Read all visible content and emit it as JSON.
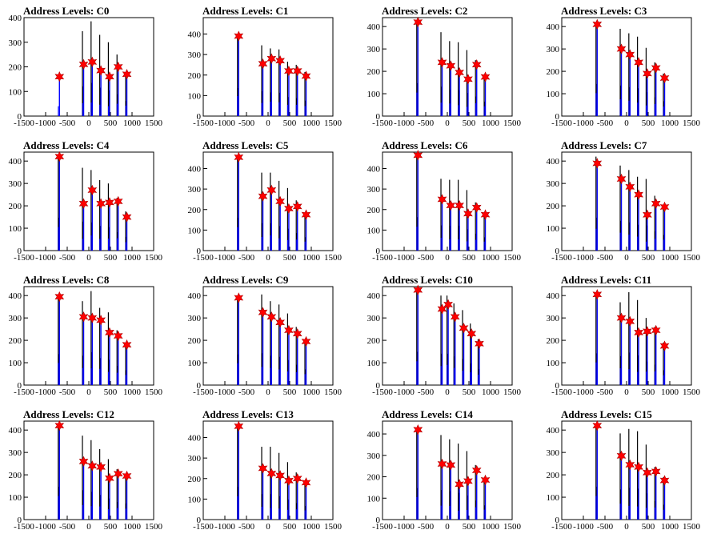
{
  "chart_data": [
    {
      "type": "bar",
      "title": "Address Levels: C0",
      "xlim": [
        -1500,
        1500
      ],
      "ylim": [
        0,
        400
      ],
      "yticks": [
        0,
        100,
        200,
        300,
        400
      ],
      "xticks": [
        -1500,
        -1000,
        -500,
        0,
        500,
        1000,
        1500
      ],
      "peak_x": [
        -680,
        -120,
        80,
        280,
        480,
        680,
        880
      ],
      "blue_peaks": [
        160,
        210,
        220,
        185,
        160,
        200,
        170
      ],
      "black_peaks": [
        0,
        345,
        385,
        330,
        300,
        250,
        175
      ],
      "markers": [
        160,
        210,
        220,
        185,
        160,
        200,
        170
      ]
    },
    {
      "type": "bar",
      "title": "Address Levels: C1",
      "xlim": [
        -1500,
        1500
      ],
      "ylim": [
        0,
        480
      ],
      "yticks": [
        0,
        100,
        200,
        300,
        400
      ],
      "xticks": [
        -1500,
        -1000,
        -500,
        0,
        500,
        1000,
        1500
      ],
      "peak_x": [
        -680,
        -120,
        80,
        280,
        480,
        680,
        880
      ],
      "blue_peaks": [
        390,
        255,
        280,
        270,
        220,
        220,
        195
      ],
      "black_peaks": [
        390,
        345,
        330,
        325,
        265,
        250,
        215
      ],
      "markers": [
        390,
        255,
        280,
        270,
        220,
        220,
        195
      ]
    },
    {
      "type": "bar",
      "title": "Address Levels: C2",
      "xlim": [
        -1500,
        1500
      ],
      "ylim": [
        0,
        440
      ],
      "yticks": [
        0,
        100,
        200,
        300,
        400
      ],
      "xticks": [
        -1500,
        -1000,
        -500,
        0,
        500,
        1000,
        1500
      ],
      "peak_x": [
        -680,
        -120,
        80,
        280,
        480,
        680,
        880
      ],
      "blue_peaks": [
        420,
        240,
        225,
        195,
        165,
        230,
        175
      ],
      "black_peaks": [
        420,
        375,
        335,
        330,
        295,
        250,
        185
      ],
      "markers": [
        420,
        240,
        225,
        195,
        165,
        230,
        175
      ]
    },
    {
      "type": "bar",
      "title": "Address Levels: C3",
      "xlim": [
        -1500,
        1500
      ],
      "ylim": [
        0,
        440
      ],
      "yticks": [
        0,
        100,
        200,
        300,
        400
      ],
      "xticks": [
        -1500,
        -1000,
        -500,
        0,
        500,
        1000,
        1500
      ],
      "peak_x": [
        -680,
        -120,
        80,
        280,
        480,
        680,
        880
      ],
      "blue_peaks": [
        410,
        300,
        275,
        240,
        190,
        215,
        170
      ],
      "black_peaks": [
        410,
        390,
        370,
        355,
        305,
        240,
        190
      ],
      "markers": [
        410,
        300,
        275,
        240,
        190,
        215,
        170
      ]
    },
    {
      "type": "bar",
      "title": "Address Levels: C4",
      "xlim": [
        -1500,
        1500
      ],
      "ylim": [
        0,
        440
      ],
      "yticks": [
        0,
        100,
        200,
        300,
        400
      ],
      "xticks": [
        -1500,
        -1000,
        -500,
        0,
        500,
        1000,
        1500
      ],
      "peak_x": [
        -680,
        -120,
        80,
        280,
        480,
        680,
        880
      ],
      "blue_peaks": [
        420,
        210,
        270,
        210,
        215,
        220,
        150
      ],
      "black_peaks": [
        420,
        370,
        360,
        315,
        300,
        235,
        175
      ],
      "markers": [
        420,
        210,
        270,
        210,
        215,
        220,
        150
      ]
    },
    {
      "type": "bar",
      "title": "Address Levels: C5",
      "xlim": [
        -1500,
        1500
      ],
      "ylim": [
        0,
        480
      ],
      "yticks": [
        0,
        100,
        200,
        300,
        400
      ],
      "xticks": [
        -1500,
        -1000,
        -500,
        0,
        500,
        1000,
        1500
      ],
      "peak_x": [
        -680,
        -120,
        80,
        280,
        480,
        680,
        880
      ],
      "blue_peaks": [
        455,
        265,
        295,
        240,
        205,
        215,
        175
      ],
      "black_peaks": [
        455,
        380,
        380,
        340,
        305,
        245,
        185
      ],
      "markers": [
        455,
        265,
        295,
        240,
        205,
        215,
        175
      ]
    },
    {
      "type": "bar",
      "title": "Address Levels: C6",
      "xlim": [
        -1500,
        1500
      ],
      "ylim": [
        0,
        480
      ],
      "yticks": [
        0,
        100,
        200,
        300,
        400
      ],
      "xticks": [
        -1500,
        -1000,
        -500,
        0,
        500,
        1000,
        1500
      ],
      "peak_x": [
        -680,
        -120,
        80,
        280,
        480,
        680,
        880
      ],
      "blue_peaks": [
        465,
        250,
        220,
        220,
        180,
        210,
        175
      ],
      "black_peaks": [
        465,
        350,
        345,
        345,
        295,
        235,
        185
      ],
      "markers": [
        465,
        250,
        220,
        220,
        180,
        210,
        175
      ]
    },
    {
      "type": "bar",
      "title": "Address Levels: C7",
      "xlim": [
        -1500,
        1500
      ],
      "ylim": [
        0,
        440
      ],
      "yticks": [
        0,
        100,
        200,
        300,
        400
      ],
      "xticks": [
        -1500,
        -1000,
        -500,
        0,
        500,
        1000,
        1500
      ],
      "peak_x": [
        -680,
        -120,
        80,
        280,
        480,
        680,
        880
      ],
      "blue_peaks": [
        390,
        320,
        285,
        250,
        160,
        210,
        195
      ],
      "black_peaks": [
        420,
        380,
        360,
        330,
        320,
        245,
        200
      ],
      "markers": [
        390,
        320,
        285,
        250,
        160,
        210,
        195
      ]
    },
    {
      "type": "bar",
      "title": "Address Levels: C8",
      "xlim": [
        -1500,
        1500
      ],
      "ylim": [
        0,
        440
      ],
      "yticks": [
        0,
        100,
        200,
        300,
        400
      ],
      "xticks": [
        -1500,
        -1000,
        -500,
        0,
        500,
        1000,
        1500
      ],
      "peak_x": [
        -680,
        -120,
        80,
        280,
        480,
        680,
        880
      ],
      "blue_peaks": [
        395,
        305,
        300,
        290,
        235,
        220,
        180
      ],
      "black_peaks": [
        395,
        375,
        420,
        345,
        325,
        245,
        190
      ],
      "markers": [
        395,
        305,
        300,
        290,
        235,
        220,
        180
      ]
    },
    {
      "type": "bar",
      "title": "Address Levels: C9",
      "xlim": [
        -1500,
        1500
      ],
      "ylim": [
        0,
        440
      ],
      "yticks": [
        0,
        100,
        200,
        300,
        400
      ],
      "xticks": [
        -1500,
        -1000,
        -500,
        0,
        500,
        1000,
        1500
      ],
      "peak_x": [
        -680,
        -120,
        80,
        280,
        480,
        680,
        880
      ],
      "blue_peaks": [
        390,
        325,
        305,
        280,
        245,
        230,
        195
      ],
      "black_peaks": [
        390,
        405,
        375,
        360,
        320,
        260,
        200
      ],
      "markers": [
        390,
        325,
        305,
        280,
        245,
        230,
        195
      ]
    },
    {
      "type": "bar",
      "title": "Address Levels: C10",
      "xlim": [
        -1500,
        1500
      ],
      "ylim": [
        0,
        440
      ],
      "yticks": [
        0,
        100,
        200,
        300,
        400
      ],
      "xticks": [
        -1500,
        -1000,
        -500,
        0,
        500,
        1000,
        1500
      ],
      "peak_x": [
        -680,
        -120,
        20,
        180,
        380,
        560,
        740
      ],
      "blue_peaks": [
        425,
        340,
        360,
        305,
        255,
        230,
        185
      ],
      "black_peaks": [
        425,
        400,
        400,
        365,
        335,
        275,
        205
      ],
      "markers": [
        425,
        340,
        360,
        305,
        255,
        230,
        185
      ]
    },
    {
      "type": "bar",
      "title": "Address Levels: C11",
      "xlim": [
        -1500,
        1500
      ],
      "ylim": [
        0,
        440
      ],
      "yticks": [
        0,
        100,
        200,
        300,
        400
      ],
      "xticks": [
        -1500,
        -1000,
        -500,
        0,
        500,
        1000,
        1500
      ],
      "peak_x": [
        -680,
        -120,
        80,
        280,
        480,
        680,
        880
      ],
      "blue_peaks": [
        405,
        300,
        285,
        235,
        240,
        245,
        175
      ],
      "black_peaks": [
        405,
        370,
        415,
        380,
        300,
        260,
        190
      ],
      "markers": [
        405,
        300,
        285,
        235,
        240,
        245,
        175
      ]
    },
    {
      "type": "bar",
      "title": "Address Levels: C12",
      "xlim": [
        -1500,
        1500
      ],
      "ylim": [
        0,
        440
      ],
      "yticks": [
        0,
        100,
        200,
        300,
        400
      ],
      "xticks": [
        -1500,
        -1000,
        -500,
        0,
        500,
        1000,
        1500
      ],
      "peak_x": [
        -680,
        -120,
        80,
        280,
        480,
        680,
        880
      ],
      "blue_peaks": [
        420,
        260,
        240,
        235,
        185,
        205,
        195
      ],
      "black_peaks": [
        420,
        375,
        355,
        315,
        270,
        225,
        205
      ],
      "markers": [
        420,
        260,
        240,
        235,
        185,
        205,
        195
      ]
    },
    {
      "type": "bar",
      "title": "Address Levels: C13",
      "xlim": [
        -1500,
        1500
      ],
      "ylim": [
        0,
        480
      ],
      "yticks": [
        0,
        100,
        200,
        300,
        400
      ],
      "xticks": [
        -1500,
        -1000,
        -500,
        0,
        500,
        1000,
        1500
      ],
      "peak_x": [
        -680,
        -120,
        80,
        280,
        480,
        680,
        880
      ],
      "blue_peaks": [
        455,
        250,
        225,
        215,
        190,
        200,
        180
      ],
      "black_peaks": [
        455,
        355,
        355,
        325,
        280,
        230,
        190
      ],
      "markers": [
        455,
        250,
        225,
        215,
        190,
        200,
        180
      ]
    },
    {
      "type": "bar",
      "title": "Address Levels: C14",
      "xlim": [
        -1500,
        1500
      ],
      "ylim": [
        0,
        460
      ],
      "yticks": [
        0,
        100,
        200,
        300,
        400
      ],
      "xticks": [
        -1500,
        -1000,
        -500,
        0,
        500,
        1000,
        1500
      ],
      "peak_x": [
        -680,
        -120,
        80,
        280,
        480,
        680,
        880
      ],
      "blue_peaks": [
        420,
        260,
        255,
        165,
        180,
        230,
        185
      ],
      "black_peaks": [
        420,
        395,
        375,
        355,
        320,
        255,
        190
      ],
      "markers": [
        420,
        260,
        255,
        165,
        180,
        230,
        185
      ]
    },
    {
      "type": "bar",
      "title": "Address Levels: C15",
      "xlim": [
        -1500,
        1500
      ],
      "ylim": [
        0,
        440
      ],
      "yticks": [
        0,
        100,
        200,
        300,
        400
      ],
      "xticks": [
        -1500,
        -1000,
        -500,
        0,
        500,
        1000,
        1500
      ],
      "peak_x": [
        -680,
        -120,
        80,
        280,
        480,
        680,
        880
      ],
      "blue_peaks": [
        420,
        285,
        245,
        235,
        210,
        215,
        175
      ],
      "black_peaks": [
        420,
        385,
        405,
        395,
        335,
        235,
        190
      ],
      "markers": [
        420,
        285,
        245,
        235,
        210,
        215,
        175
      ]
    }
  ],
  "colors": {
    "primary_series": "#0000ff",
    "secondary_series": "#000000",
    "marker": "#ff0000",
    "marker_outline": "#b00000",
    "axis": "#000000"
  },
  "marker_shape": "star-icon"
}
